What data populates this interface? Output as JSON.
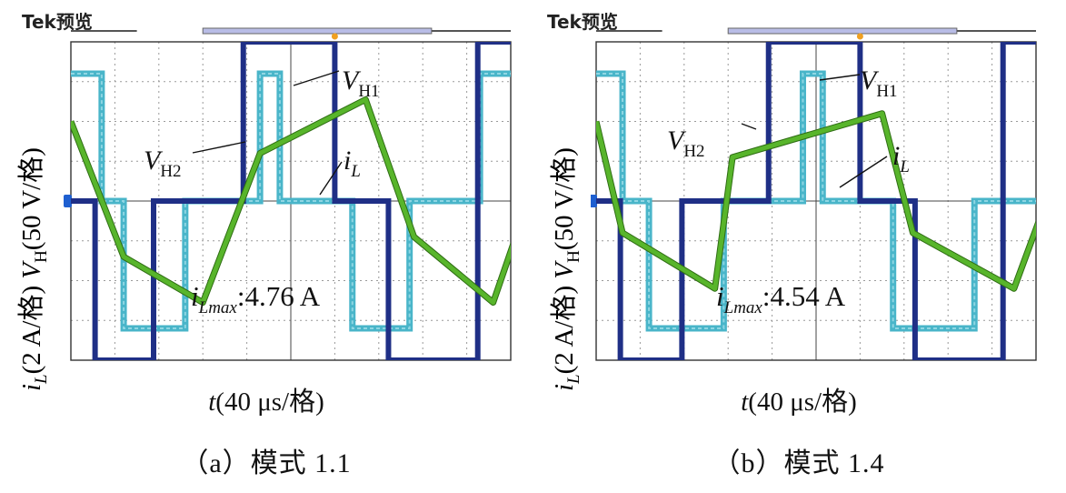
{
  "scope_header": "Tek预览",
  "y_axis_label": "i_L(2 A/格) V_H(50 V/格)",
  "x_axis_label": "t(40 μs/格)",
  "colors": {
    "vh1": "#1f2f86",
    "vh2": "#49b5c9",
    "il": "#58b52b",
    "grid": "#9a9a9a",
    "marker": "#1e5fd0",
    "trigger": "#f0a020"
  },
  "chart_data": [
    {
      "type": "line",
      "title": "",
      "caption": "（a）模式 1.1",
      "xlabel": "t(40 μs/格)",
      "ylabel": "i_L(2 A/格) V_H(50 V/格)",
      "grid": true,
      "annotation": "i_Lmax:4.76 A",
      "annotation_main": "i",
      "annotation_sub": "Lmax",
      "annotation_rest": ":4.76 A",
      "x_unit": "divisions",
      "y_unit": "divisions",
      "series": [
        {
          "name": "V_H1",
          "label_main": "V",
          "label_sub": "H1",
          "x": [
            0,
            0.55,
            0.55,
            1.88,
            1.88,
            3.92,
            3.92,
            6.0,
            6.0,
            7.22,
            7.22,
            9.25,
            9.25,
            10
          ],
          "y": [
            0,
            0,
            -4,
            -4,
            0,
            0,
            4,
            4,
            0,
            0,
            -4,
            -4,
            4,
            4
          ]
        },
        {
          "name": "V_H2",
          "label_main": "V",
          "label_sub": "H2",
          "x": [
            0,
            0.7,
            0.7,
            1.2,
            1.2,
            2.6,
            2.6,
            4.3,
            4.3,
            4.75,
            4.75,
            6.4,
            6.4,
            7.7,
            7.7,
            9.3,
            9.3,
            10
          ],
          "y": [
            3.2,
            3.2,
            0,
            0,
            -3.2,
            -3.2,
            0,
            0,
            3.2,
            3.2,
            0,
            0,
            -3.2,
            -3.2,
            0,
            0,
            3.2,
            3.2
          ]
        },
        {
          "name": "i_L",
          "label_main": "i",
          "label_sub": "L",
          "x": [
            0,
            1.2,
            3.0,
            4.3,
            6.7,
            7.8,
            9.6,
            10.8,
            12.0
          ],
          "y": [
            2.0,
            -1.4,
            -2.55,
            1.2,
            2.55,
            -0.9,
            -2.55,
            1.3,
            2.5
          ]
        }
      ]
    },
    {
      "type": "line",
      "title": "",
      "caption": "（b）模式 1.4",
      "xlabel": "t(40 μs/格)",
      "ylabel": "i_L(2 A/格) V_H(50 V/格)",
      "grid": true,
      "annotation": "i_Lmax:4.54 A",
      "annotation_main": "i",
      "annotation_sub": "Lmax",
      "annotation_rest": ":4.54 A",
      "x_unit": "divisions",
      "y_unit": "divisions",
      "series": [
        {
          "name": "V_H1",
          "label_main": "V",
          "label_sub": "H1",
          "x": [
            0,
            0.55,
            0.55,
            1.95,
            1.95,
            3.92,
            3.92,
            6.0,
            6.0,
            7.25,
            7.25,
            9.25,
            9.25,
            10
          ],
          "y": [
            0,
            0,
            -4,
            -4,
            0,
            0,
            4,
            4,
            0,
            0,
            -4,
            -4,
            4,
            4
          ]
        },
        {
          "name": "V_H2",
          "label_main": "V",
          "label_sub": "H2",
          "x": [
            0,
            0.6,
            0.6,
            1.2,
            1.2,
            2.9,
            2.9,
            4.7,
            4.7,
            5.15,
            5.15,
            6.75,
            6.75,
            8.6,
            8.6,
            10
          ],
          "y": [
            3.2,
            3.2,
            0,
            0,
            -3.2,
            -3.2,
            0,
            0,
            3.2,
            3.2,
            0,
            0,
            -3.2,
            -3.2,
            0,
            0
          ]
        },
        {
          "name": "i_L",
          "label_main": "i",
          "label_sub": "L",
          "x": [
            0,
            0.6,
            2.7,
            3.1,
            6.5,
            7.2,
            9.5,
            10.6,
            11.5
          ],
          "y": [
            2.0,
            -0.8,
            -2.2,
            1.1,
            2.2,
            -0.8,
            -2.2,
            1.1,
            2.0
          ]
        }
      ]
    }
  ]
}
